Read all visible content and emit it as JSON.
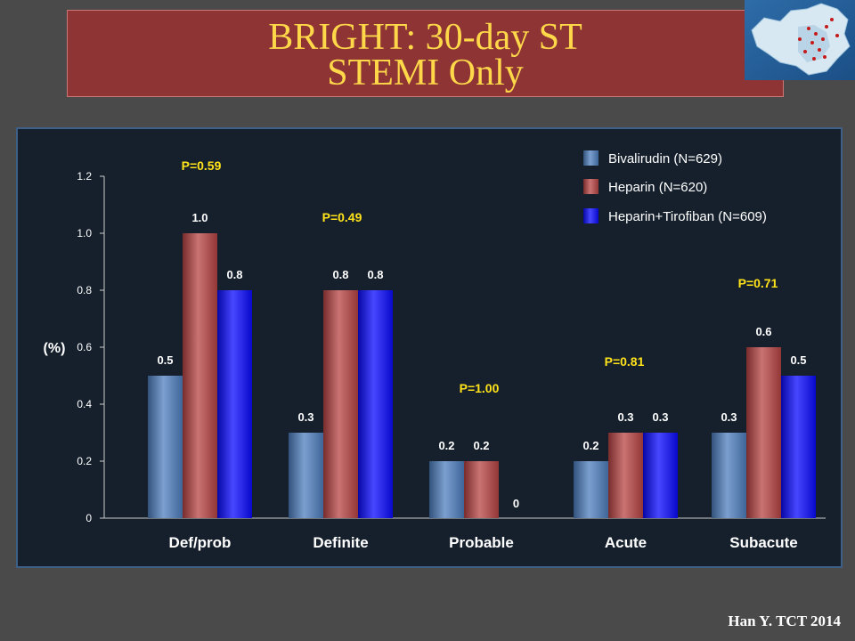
{
  "slide": {
    "title_line1": "BRIGHT: 30-day ST",
    "title_line2": "STEMI Only",
    "footer": "Han Y. TCT 2014",
    "map_icon": "china-map-icon"
  },
  "chart_data": {
    "type": "bar",
    "ylabel": "(%)",
    "ylim": [
      0,
      1.2
    ],
    "yticks": [
      "0",
      "0.2",
      "0.4",
      "0.6",
      "0.8",
      "1.0",
      "1.2"
    ],
    "categories": [
      "Def/prob",
      "Definite",
      "Probable",
      "Acute",
      "Subacute"
    ],
    "series": [
      {
        "name": "Bivalirudin (N=629)",
        "color": "#4f7fbf",
        "values": [
          0.5,
          0.3,
          0.2,
          0.2,
          0.3
        ],
        "labels": [
          "0.5",
          "0.3",
          "0.2",
          "0.2",
          "0.3"
        ]
      },
      {
        "name": "Heparin (N=620)",
        "color": "#b84444",
        "values": [
          1.0,
          0.8,
          0.2,
          0.3,
          0.6
        ],
        "labels": [
          "1.0",
          "0.8",
          "0.2",
          "0.3",
          "0.6"
        ]
      },
      {
        "name": "Heparin+Tirofiban (N=609)",
        "color": "#0a0aff",
        "values": [
          0.8,
          0.8,
          0,
          0.3,
          0.5
        ],
        "labels": [
          "0.8",
          "0.8",
          "0",
          "0.3",
          "0.5"
        ]
      }
    ],
    "p_values": [
      "P=0.59",
      "P=0.49",
      "P=1.00",
      "P=0.81",
      "P=0.71"
    ],
    "grid": false,
    "legend_position": "top-right",
    "colors": {
      "p_value": "#ffe21a",
      "text": "#ffffff",
      "axis": "#cccccc"
    }
  }
}
